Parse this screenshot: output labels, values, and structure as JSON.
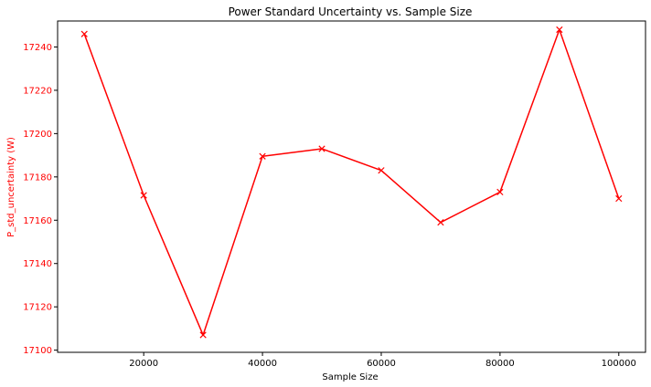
{
  "chart_data": {
    "type": "line",
    "title": "Power Standard Uncertainty vs. Sample Size",
    "xlabel": "Sample Size",
    "ylabel": "P_std_uncertainty (W)",
    "xlim": [
      5500,
      104500
    ],
    "ylim": [
      17099,
      17252
    ],
    "xticks": [
      20000,
      40000,
      60000,
      80000,
      100000
    ],
    "yticks": [
      17100,
      17120,
      17140,
      17160,
      17180,
      17200,
      17220,
      17240
    ],
    "grid": false,
    "marker": "x",
    "series": [
      {
        "name": "P_std_uncertainty",
        "color": "#ff0000",
        "x": [
          10000,
          20000,
          30000,
          40000,
          50000,
          60000,
          70000,
          80000,
          90000,
          100000
        ],
        "y": [
          17246.0,
          17171.5,
          17107.0,
          17189.5,
          17193.0,
          17183.0,
          17159.0,
          17173.0,
          17248.0,
          17170.0
        ]
      }
    ],
    "colors": {
      "ylabel": "#ff0000",
      "ytick": "#ff0000",
      "axis": "#000000"
    }
  }
}
